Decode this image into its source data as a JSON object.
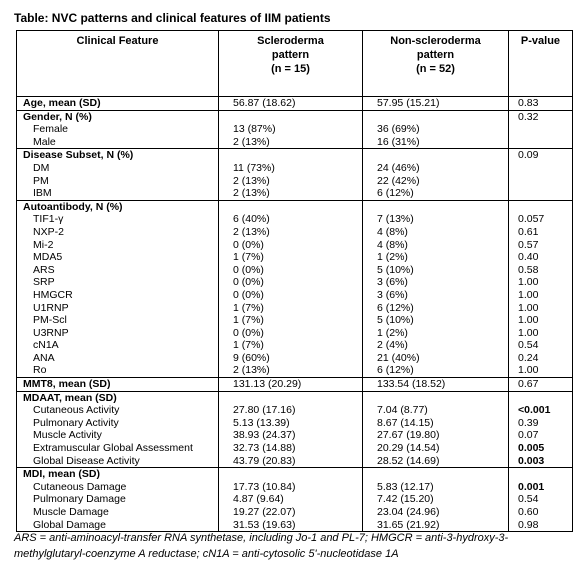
{
  "title": "Table: NVC patterns and clinical features of IIM patients",
  "table": {
    "header": {
      "feature": "Clinical Feature",
      "scl": [
        "Scleroderma",
        "pattern",
        "(n = 15)"
      ],
      "non": [
        "Non-scleroderma",
        "pattern",
        "(n = 52)"
      ],
      "p": "P-value"
    },
    "sections": [
      {
        "label": "Age, mean (SD)",
        "scl": "56.87 (18.62)",
        "non": "57.95 (15.21)",
        "p": "0.83",
        "rows": []
      },
      {
        "label": "Gender, N (%)",
        "p": "0.32",
        "rows": [
          {
            "label": "Female",
            "scl": "13 (87%)",
            "non": "36 (69%)"
          },
          {
            "label": "Male",
            "scl": "2 (13%)",
            "non": "16 (31%)"
          }
        ]
      },
      {
        "label": "Disease Subset, N (%)",
        "p": "0.09",
        "rows": [
          {
            "label": "DM",
            "scl": "11 (73%)",
            "non": "24 (46%)"
          },
          {
            "label": "PM",
            "scl": "2 (13%)",
            "non": "22 (42%)"
          },
          {
            "label": "IBM",
            "scl": "2 (13%)",
            "non": "6 (12%)"
          }
        ]
      },
      {
        "label": "Autoantibody, N (%)",
        "rows": [
          {
            "label": "TIF1-γ",
            "scl": "6 (40%)",
            "non": "7 (13%)",
            "p": "0.057"
          },
          {
            "label": "NXP-2",
            "scl": "2 (13%)",
            "non": "4 (8%)",
            "p": "0.61"
          },
          {
            "label": "Mi-2",
            "scl": "0 (0%)",
            "non": "4 (8%)",
            "p": "0.57"
          },
          {
            "label": "MDA5",
            "scl": "1 (7%)",
            "non": "1 (2%)",
            "p": "0.40"
          },
          {
            "label": "ARS",
            "scl": "0 (0%)",
            "non": "5 (10%)",
            "p": "0.58"
          },
          {
            "label": "SRP",
            "scl": "0 (0%)",
            "non": "3 (6%)",
            "p": "1.00"
          },
          {
            "label": "HMGCR",
            "scl": "0 (0%)",
            "non": "3 (6%)",
            "p": "1.00"
          },
          {
            "label": "U1RNP",
            "scl": "1 (7%)",
            "non": "6 (12%)",
            "p": "1.00"
          },
          {
            "label": "PM-Scl",
            "scl": "1 (7%)",
            "non": "5 (10%)",
            "p": "1.00"
          },
          {
            "label": "U3RNP",
            "scl": "0 (0%)",
            "non": "1 (2%)",
            "p": "1.00"
          },
          {
            "label": "cN1A",
            "scl": "1 (7%)",
            "non": "2 (4%)",
            "p": "0.54"
          },
          {
            "label": "ANA",
            "scl": "9 (60%)",
            "non": "21 (40%)",
            "p": "0.24"
          },
          {
            "label": "Ro",
            "scl": "2 (13%)",
            "non": "6 (12%)",
            "p": "1.00"
          }
        ]
      },
      {
        "label": "MMT8, mean (SD)",
        "scl": "131.13 (20.29)",
        "non": "133.54 (18.52)",
        "p": "0.67",
        "rows": []
      },
      {
        "label": "MDAAT, mean (SD)",
        "rows": [
          {
            "label": "Cutaneous Activity",
            "scl": "27.80 (17.16)",
            "non": "7.04 (8.77)",
            "p": "<0.001",
            "p_bold": true
          },
          {
            "label": "Pulmonary Activity",
            "scl": "5.13 (13.39)",
            "non": "8.67 (14.15)",
            "p": "0.39"
          },
          {
            "label": "Muscle Activity",
            "scl": "38.93 (24.37)",
            "non": "27.67 (19.80)",
            "p": "0.07"
          },
          {
            "label": "Extramuscular Global Assessment",
            "scl": "32.73 (14.88)",
            "non": "20.29 (14.54)",
            "p": "0.005",
            "p_bold": true
          },
          {
            "label": "Global Disease Activity",
            "scl": "43.79 (20.83)",
            "non": "28.52 (14.69)",
            "p": "0.003",
            "p_bold": true
          }
        ]
      },
      {
        "label": "MDI, mean (SD)",
        "rows": [
          {
            "label": "Cutaneous Damage",
            "scl": "17.73 (10.84)",
            "non": "5.83 (12.17)",
            "p": "0.001",
            "p_bold": true
          },
          {
            "label": "Pulmonary Damage",
            "scl": "4.87 (9.64)",
            "non": "7.42 (15.20)",
            "p": "0.54"
          },
          {
            "label": "Muscle Damage",
            "scl": "19.27 (22.07)",
            "non": "23.04 (24.96)",
            "p": "0.60"
          },
          {
            "label": "Global Damage",
            "scl": "31.53 (19.63)",
            "non": "31.65 (21.92)",
            "p": "0.98"
          }
        ]
      }
    ]
  },
  "footnote": "ARS = anti-aminoacyl-transfer RNA synthetase, including Jo-1 and PL-7; HMGCR = anti-3-hydroxy-3-methylglutaryl-coenzyme A reductase; cN1A = anti-cytosolic 5'-nucleotidase 1A"
}
